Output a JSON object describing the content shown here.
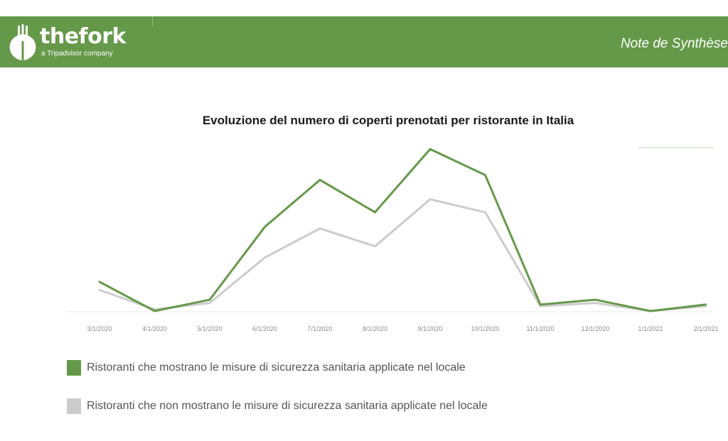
{
  "header": {
    "brand": "thefork",
    "tagline": "a Tripadvisor company",
    "right_title": "Note de Synthèse",
    "logo_icon": "fork-leaf-icon",
    "color": "#65994a"
  },
  "chart_data": {
    "type": "line",
    "title": "Evoluzione del numero di coperti prenotati per ristorante in Italia",
    "xlabel": "",
    "ylabel": "",
    "categories": [
      "3/1/2020",
      "4/1/2020",
      "5/1/2020",
      "6/1/2020",
      "7/1/2020",
      "8/1/2020",
      "9/1/2020",
      "10/1/2020",
      "11/1/2020",
      "12/1/2020",
      "1/1/2021",
      "2/1/2021"
    ],
    "ylim": [
      0,
      100
    ],
    "grid": false,
    "y_axis_labels_shown": false,
    "legend_position": "bottom",
    "series": [
      {
        "name": "Ristoranti che mostrano le misure di sicurezza sanitaria applicate nel locale",
        "color": "#65994a",
        "values": [
          18,
          0,
          7,
          52,
          81,
          61,
          100,
          84,
          4,
          7,
          0,
          4
        ]
      },
      {
        "name": "Ristoranti che non mostrano le misure di sicurezza sanitaria applicate nel locale",
        "color": "#cccccc",
        "values": [
          13,
          1,
          5,
          33,
          51,
          40,
          69,
          61,
          3,
          5,
          0,
          3
        ]
      }
    ]
  }
}
